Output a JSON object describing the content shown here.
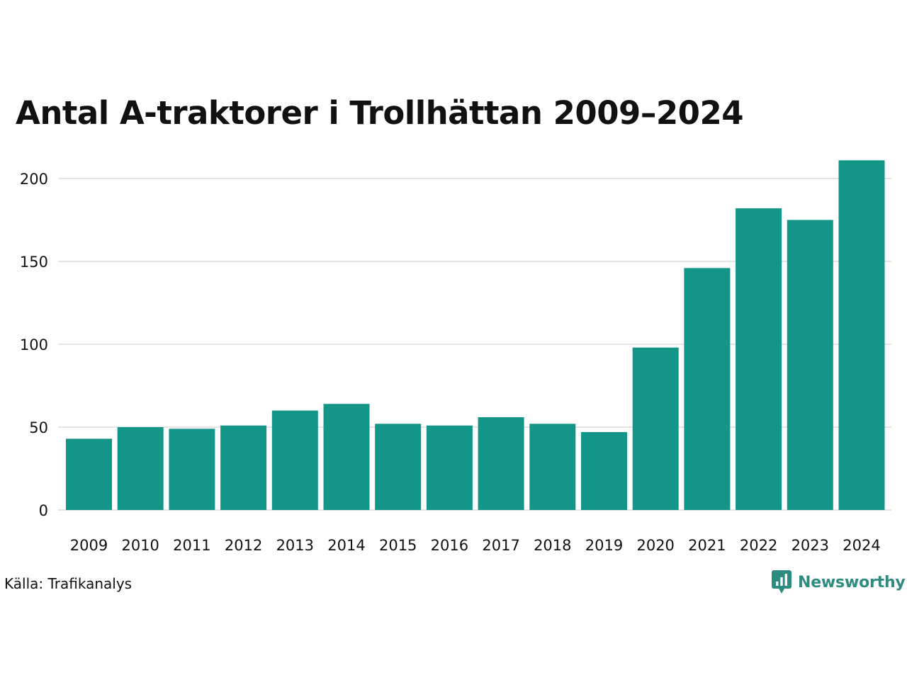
{
  "title": "Antal A-traktorer i Trollhättan 2009–2024",
  "source": "Källa: Trafikanalys",
  "brand": {
    "name": "Newsworthy",
    "icon": "newsworthy-logo-icon",
    "color": "#2e8b80"
  },
  "colors": {
    "bar": "#139688",
    "grid": "#e4e4e4",
    "text": "#111111"
  },
  "chart_data": {
    "type": "bar",
    "title": "Antal A-traktorer i Trollhättan 2009–2024",
    "xlabel": "",
    "ylabel": "",
    "categories": [
      "2009",
      "2010",
      "2011",
      "2012",
      "2013",
      "2014",
      "2015",
      "2016",
      "2017",
      "2018",
      "2019",
      "2020",
      "2021",
      "2022",
      "2023",
      "2024"
    ],
    "values": [
      43,
      50,
      49,
      51,
      60,
      64,
      52,
      51,
      56,
      52,
      47,
      98,
      146,
      182,
      175,
      211
    ],
    "ylim": [
      0,
      215
    ],
    "yticks": [
      0,
      50,
      100,
      150,
      200
    ],
    "grid": true,
    "legend": "none"
  }
}
